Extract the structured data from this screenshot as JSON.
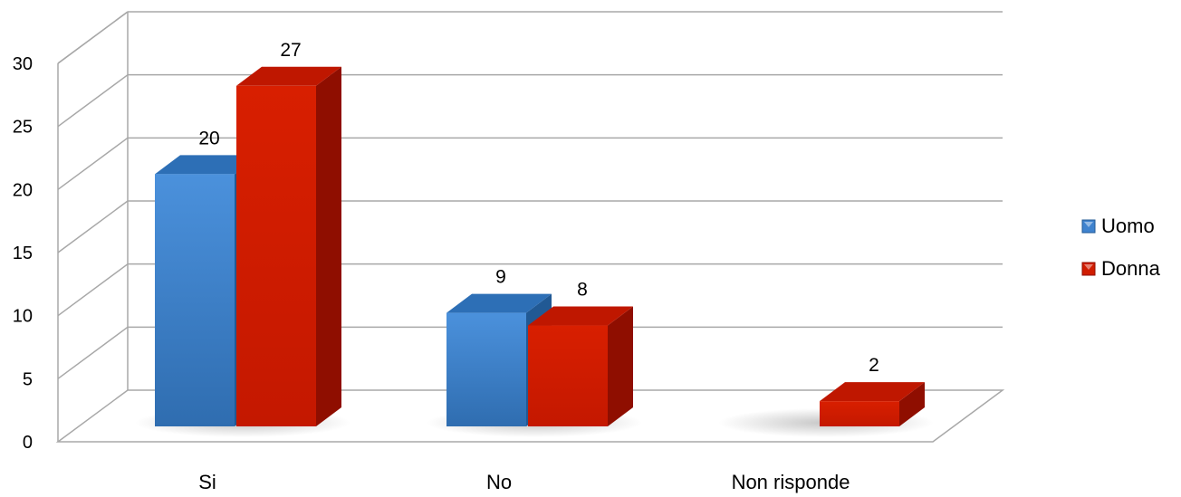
{
  "chart_data": {
    "type": "bar",
    "style": "3d-clustered-column",
    "categories": [
      "Si",
      "No",
      "Non risponde"
    ],
    "series": [
      {
        "name": "Uomo",
        "values": [
          20,
          9,
          0
        ],
        "color": "#3f83cf",
        "color_top": "#2d6fb6",
        "color_side": "#215994"
      },
      {
        "name": "Donna",
        "values": [
          27,
          8,
          2
        ],
        "color": "#d01c00",
        "color_top": "#bf1700",
        "color_side": "#8f0e00"
      }
    ],
    "data_labels": [
      [
        "20",
        "9",
        ""
      ],
      [
        "27",
        "8",
        "2"
      ]
    ],
    "y_ticks": [
      0,
      5,
      10,
      15,
      20,
      25,
      30
    ],
    "ylim": [
      0,
      30
    ],
    "grid": true,
    "legend_position": "right",
    "title": "",
    "xlabel": "",
    "ylabel": ""
  }
}
